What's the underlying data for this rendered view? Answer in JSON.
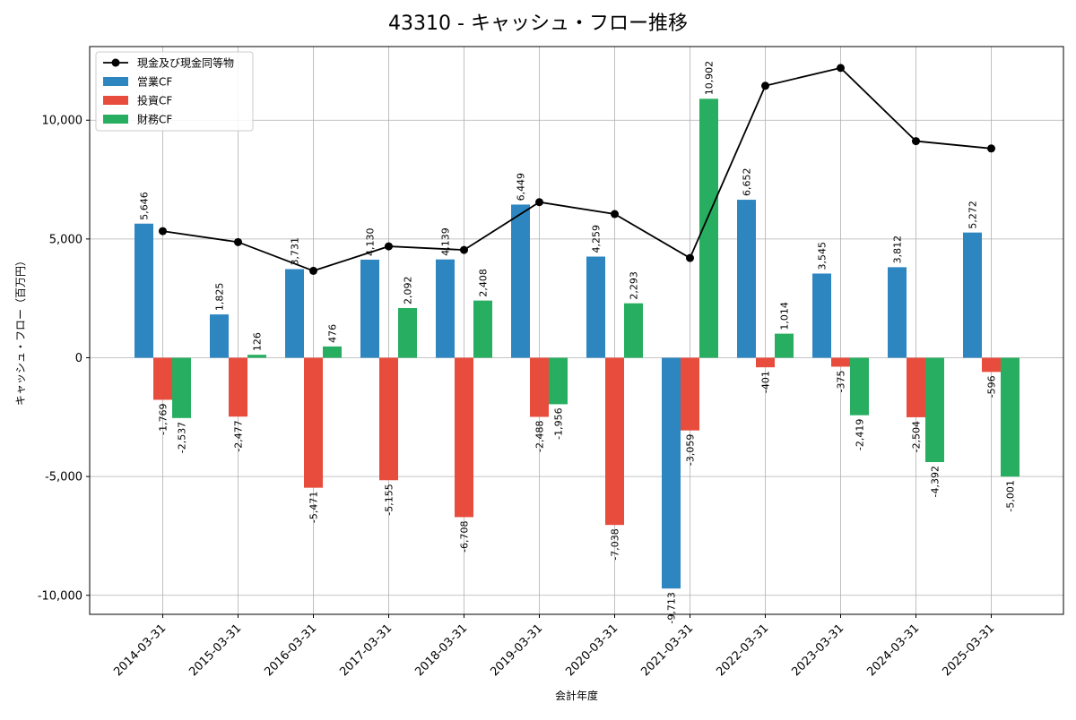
{
  "chart_data": {
    "type": "bar+line",
    "title": "43310 - キャッシュ・フロー推移",
    "xlabel": "会計年度",
    "ylabel": "キャッシュ・フロー（百万円）",
    "ylim": [
      -10800,
      13100
    ],
    "yticks": [
      -10000,
      -5000,
      0,
      5000,
      10000
    ],
    "ytick_labels": [
      "-10,000",
      "-5,000",
      "0",
      "5,000",
      "10,000"
    ],
    "grid": true,
    "legend_position": "top-left",
    "categories": [
      "2014-03-31",
      "2015-03-31",
      "2016-03-31",
      "2017-03-31",
      "2018-03-31",
      "2019-03-31",
      "2020-03-31",
      "2021-03-31",
      "2022-03-31",
      "2023-03-31",
      "2024-03-31",
      "2025-03-31"
    ],
    "series": [
      {
        "name": "営業CF",
        "kind": "bar",
        "color": "#2e86c1",
        "values": [
          5646,
          1825,
          3731,
          4130,
          4139,
          6449,
          4259,
          -9713,
          6652,
          3545,
          3812,
          5272
        ],
        "labels": [
          "5,646",
          "1,825",
          "3,731",
          "4,130",
          "4,139",
          "6,449",
          "4,259",
          "-9,713",
          "6,652",
          "3,545",
          "3,812",
          "5,272"
        ]
      },
      {
        "name": "投資CF",
        "kind": "bar",
        "color": "#e74c3c",
        "values": [
          -1769,
          -2477,
          -5471,
          -5155,
          -6708,
          -2488,
          -7038,
          -3059,
          -401,
          -375,
          -2504,
          -596
        ],
        "labels": [
          "-1,769",
          "-2,477",
          "-5,471",
          "-5,155",
          "-6,708",
          "-2,488",
          "-7,038",
          "-3,059",
          "-401",
          "-375",
          "-2,504",
          "-596"
        ]
      },
      {
        "name": "財務CF",
        "kind": "bar",
        "color": "#27ae60",
        "values": [
          -2537,
          126,
          476,
          2092,
          2408,
          -1956,
          2293,
          10902,
          1014,
          -2419,
          -4392,
          -5001
        ],
        "labels": [
          "-2,537",
          "126",
          "476",
          "2,092",
          "2,408",
          "-1,956",
          "2,293",
          "10,902",
          "1,014",
          "-2,419",
          "-4,392",
          "-5,001"
        ]
      },
      {
        "name": "現金及び現金同等物",
        "kind": "line",
        "color": "#000000",
        "values": [
          5330,
          4870,
          3660,
          4690,
          4540,
          6550,
          6050,
          4200,
          11450,
          12200,
          9120,
          8810
        ]
      }
    ]
  }
}
